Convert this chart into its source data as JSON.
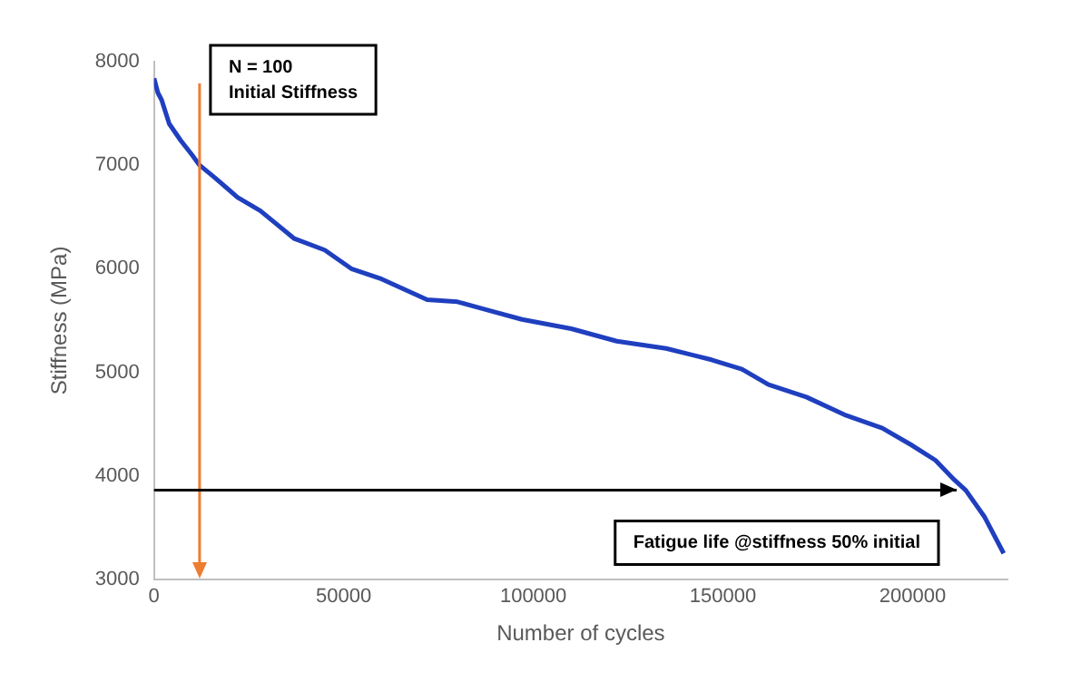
{
  "chart_data": {
    "type": "line",
    "xlabel": "Number of cycles",
    "ylabel": "Stiffness (MPa)",
    "x": [
      0,
      1000,
      2000,
      4000,
      7000,
      10000,
      12000,
      16000,
      22000,
      28000,
      37000,
      45000,
      52000,
      60000,
      72000,
      80000,
      87000,
      97000,
      110000,
      122000,
      135000,
      147000,
      155000,
      162000,
      172000,
      182000,
      192000,
      200000,
      206000,
      211000,
      214000,
      219000,
      224000
    ],
    "series": [
      {
        "color": "#1f3fbf",
        "values": [
          7840,
          7700,
          7630,
          7400,
          7240,
          7100,
          7000,
          6880,
          6690,
          6560,
          6290,
          6180,
          6000,
          5900,
          5700,
          5680,
          5610,
          5510,
          5420,
          5300,
          5230,
          5120,
          5030,
          4880,
          4760,
          4590,
          4460,
          4290,
          4150,
          3960,
          3860,
          3600,
          3250
        ]
      }
    ],
    "xlim": [
      0,
      225000
    ],
    "xticks": [
      0,
      50000,
      100000,
      150000,
      200000
    ],
    "ylim": [
      3000,
      8000
    ],
    "yticks": [
      3000,
      4000,
      5000,
      6000,
      7000,
      8000
    ],
    "grid": false,
    "legend": false,
    "marker": "none",
    "line_style": "solid",
    "ref_lines": [
      {
        "axis": "x",
        "value": 12000,
        "color": "#ed7d31"
      },
      {
        "axis": "y",
        "value": 3860,
        "color": "#000000"
      }
    ],
    "annotations": [
      "N = 100\nInitial Stiffness",
      "Fatigue life @stiffness 50% initial"
    ]
  }
}
